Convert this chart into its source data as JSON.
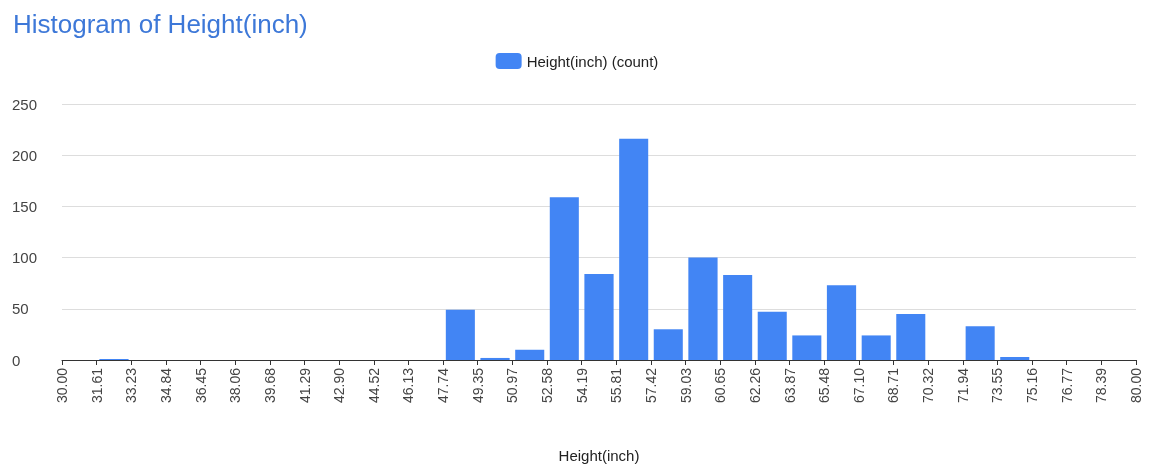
{
  "chart_data": {
    "type": "histogram",
    "title": "Histogram of Height(inch)",
    "xlabel": "Height(inch)",
    "bins": [
      30.0,
      31.61,
      33.23,
      34.84,
      36.45,
      38.06,
      39.68,
      41.29,
      42.9,
      44.52,
      46.13,
      47.74,
      49.35,
      50.97,
      52.58,
      54.19,
      55.81,
      57.42,
      59.03,
      60.65,
      62.26,
      63.87,
      65.48,
      67.1,
      68.71,
      70.32,
      71.94,
      73.55,
      75.16,
      76.77,
      78.39,
      80.0
    ],
    "series": [
      {
        "name": "Height(inch) (count)",
        "color": "#4285f4",
        "values": [
          0,
          1,
          0,
          0,
          0,
          0,
          0,
          0,
          0,
          0,
          0,
          49,
          2,
          10,
          159,
          84,
          216,
          30,
          100,
          83,
          47,
          24,
          73,
          24,
          45,
          0,
          33,
          3,
          0,
          0,
          0
        ]
      }
    ],
    "xlim": [
      30,
      80
    ],
    "xticks": [
      {
        "value": 30,
        "label": "30.00"
      },
      {
        "value": 31.61,
        "label": "31.61"
      },
      {
        "value": 33.23,
        "label": "33.23"
      },
      {
        "value": 34.84,
        "label": "34.84"
      },
      {
        "value": 36.45,
        "label": "36.45"
      },
      {
        "value": 38.06,
        "label": "38.06"
      },
      {
        "value": 39.68,
        "label": "39.68"
      },
      {
        "value": 41.29,
        "label": "41.29"
      },
      {
        "value": 42.9,
        "label": "42.90"
      },
      {
        "value": 44.52,
        "label": "44.52"
      },
      {
        "value": 46.13,
        "label": "46.13"
      },
      {
        "value": 47.74,
        "label": "47.74"
      },
      {
        "value": 49.35,
        "label": "49.35"
      },
      {
        "value": 50.97,
        "label": "50.97"
      },
      {
        "value": 52.58,
        "label": "52.58"
      },
      {
        "value": 54.19,
        "label": "54.19"
      },
      {
        "value": 55.81,
        "label": "55.81"
      },
      {
        "value": 57.42,
        "label": "57.42"
      },
      {
        "value": 59.03,
        "label": "59.03"
      },
      {
        "value": 60.65,
        "label": "60.65"
      },
      {
        "value": 62.26,
        "label": "62.26"
      },
      {
        "value": 63.87,
        "label": "63.87"
      },
      {
        "value": 65.48,
        "label": "65.48"
      },
      {
        "value": 67.1,
        "label": "67.10"
      },
      {
        "value": 68.71,
        "label": "68.71"
      },
      {
        "value": 70.32,
        "label": "70.32"
      },
      {
        "value": 71.94,
        "label": "71.94"
      },
      {
        "value": 73.55,
        "label": "73.55"
      },
      {
        "value": 75.16,
        "label": "75.16"
      },
      {
        "value": 76.77,
        "label": "76.77"
      },
      {
        "value": 78.39,
        "label": "78.39"
      },
      {
        "value": 80,
        "label": "80.00"
      }
    ],
    "ylim": [
      0,
      250
    ],
    "yticks": [
      0,
      50,
      100,
      150,
      200,
      250
    ],
    "grid": "y",
    "legend": "top"
  }
}
